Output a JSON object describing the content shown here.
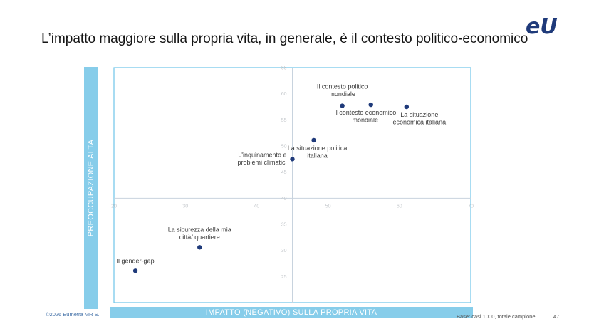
{
  "slide": {
    "title": "L’impatto maggiore sulla propria vita, in generale, è il contesto politico-economico",
    "copyright": "©2026 Eumetra MR S.",
    "base_note": "Base: casi 1000, totale campione",
    "page_number": "47",
    "logo_text": "eU",
    "y_band_label": "PREOCCUPAZIONE ALTA",
    "x_band_label": "IMPATTO (NEGATIVO) SULLA PROPRIA VITA"
  },
  "colors": {
    "accent_band": "#87cdea",
    "frame": "#6ec4e8",
    "point": "#1f3a7a",
    "logo": "#1f3a7a",
    "quadrant_lines": "#c8d3de",
    "tick_labels": "#c4c8cc"
  },
  "chart_data": {
    "type": "scatter",
    "title": "",
    "xlabel": "IMPATTO (NEGATIVO) SULLA PROPRIA VITA",
    "ylabel": "PREOCCUPAZIONE ALTA",
    "xlim": [
      20,
      70
    ],
    "ylim": [
      20,
      65
    ],
    "x_ticks": [
      20,
      30,
      40,
      50,
      60,
      70
    ],
    "y_ticks": [
      25,
      30,
      35,
      40,
      45,
      50,
      55,
      60,
      65
    ],
    "x_cross": 45,
    "y_cross": 40,
    "grid": false,
    "points": [
      {
        "label": "Il contesto politico\nmondiale",
        "x": 52,
        "y": 57.7
      },
      {
        "label": "Il contesto economico\nmondiale",
        "x": 56,
        "y": 57.9
      },
      {
        "label": "La situazione\neconomica italiana",
        "x": 61,
        "y": 57.5
      },
      {
        "label": "La situazione politica\nitaliana",
        "x": 48,
        "y": 51.1
      },
      {
        "label": "L'inquinamento e\nproblemi climatici",
        "x": 45,
        "y": 47.5
      },
      {
        "label": "La sicurezza della mia\ncittà/ quartiere",
        "x": 32,
        "y": 30.6
      },
      {
        "label": "Il gender-gap",
        "x": 23,
        "y": 26.1
      }
    ]
  }
}
